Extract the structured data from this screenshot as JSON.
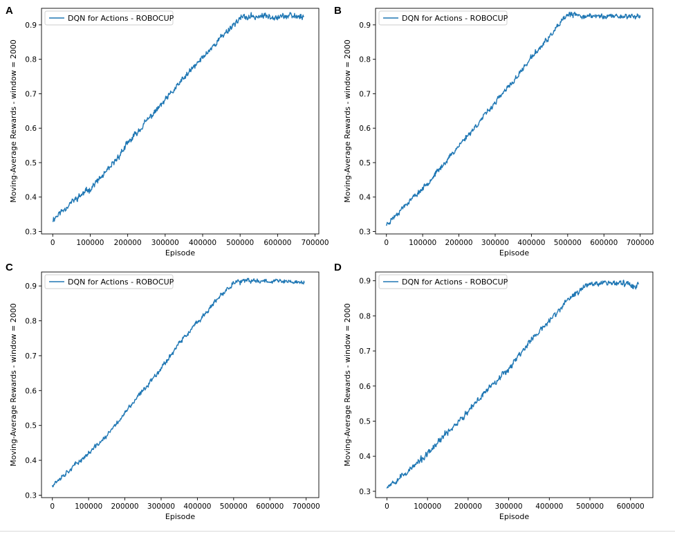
{
  "line_color": "#1f77b4",
  "chart_data": [
    {
      "panel": "A",
      "type": "line",
      "title": "",
      "xlabel": "Episode",
      "ylabel": "Moving-Average Rewards - window = 2000",
      "legend": "DQN for Actions - ROBOCUP",
      "legend_loc": "upper-left",
      "grid": false,
      "xlim": [
        -30000,
        710000
      ],
      "ylim": [
        0.293,
        0.948
      ],
      "xticks": [
        0,
        100000,
        200000,
        300000,
        400000,
        500000,
        600000,
        700000
      ],
      "xtick_labels": [
        "0",
        "100000",
        "200000",
        "300000",
        "400000",
        "500000",
        "600000",
        "700000"
      ],
      "yticks": [
        0.3,
        0.4,
        0.5,
        0.6,
        0.7,
        0.8,
        0.9
      ],
      "ytick_labels": [
        "0.3",
        "0.4",
        "0.5",
        "0.6",
        "0.7",
        "0.8",
        "0.9"
      ],
      "x": [
        0,
        50000,
        100000,
        150000,
        200000,
        250000,
        300000,
        350000,
        400000,
        450000,
        500000,
        550000,
        600000,
        670000
      ],
      "y": [
        0.335,
        0.385,
        0.425,
        0.48,
        0.555,
        0.62,
        0.68,
        0.745,
        0.805,
        0.865,
        0.92,
        0.925,
        0.925,
        0.925
      ],
      "noise": 0.012,
      "seed": 11
    },
    {
      "panel": "B",
      "type": "line",
      "title": "",
      "xlabel": "Episode",
      "ylabel": "Moving-Average Rewards - window = 2000",
      "legend": "DQN for Actions - ROBOCUP",
      "legend_loc": "upper-left",
      "grid": false,
      "xlim": [
        -30000,
        735000
      ],
      "ylim": [
        0.293,
        0.948
      ],
      "xticks": [
        0,
        100000,
        200000,
        300000,
        400000,
        500000,
        600000,
        700000
      ],
      "xtick_labels": [
        "0",
        "100000",
        "200000",
        "300000",
        "400000",
        "500000",
        "600000",
        "700000"
      ],
      "yticks": [
        0.3,
        0.4,
        0.5,
        0.6,
        0.7,
        0.8,
        0.9
      ],
      "ytick_labels": [
        "0.3",
        "0.4",
        "0.5",
        "0.6",
        "0.7",
        "0.8",
        "0.9"
      ],
      "x": [
        0,
        50000,
        100000,
        150000,
        200000,
        250000,
        300000,
        350000,
        400000,
        450000,
        500000,
        550000,
        600000,
        700000
      ],
      "y": [
        0.32,
        0.375,
        0.425,
        0.485,
        0.55,
        0.61,
        0.675,
        0.735,
        0.805,
        0.865,
        0.93,
        0.925,
        0.925,
        0.925
      ],
      "noise": 0.01,
      "seed": 23
    },
    {
      "panel": "C",
      "type": "line",
      "title": "",
      "xlabel": "Episode",
      "ylabel": "Moving-Average Rewards - window = 2000",
      "legend": "DQN for Actions - ROBOCUP",
      "legend_loc": "upper-left",
      "grid": false,
      "xlim": [
        -30000,
        735000
      ],
      "ylim": [
        0.293,
        0.94
      ],
      "xticks": [
        0,
        100000,
        200000,
        300000,
        400000,
        500000,
        600000,
        700000
      ],
      "xtick_labels": [
        "0",
        "100000",
        "200000",
        "300000",
        "400000",
        "500000",
        "600000",
        "700000"
      ],
      "yticks": [
        0.3,
        0.4,
        0.5,
        0.6,
        0.7,
        0.8,
        0.9
      ],
      "ytick_labels": [
        "0.3",
        "0.4",
        "0.5",
        "0.6",
        "0.7",
        "0.8",
        "0.9"
      ],
      "x": [
        0,
        50000,
        100000,
        150000,
        200000,
        250000,
        300000,
        350000,
        400000,
        450000,
        500000,
        550000,
        600000,
        695000
      ],
      "y": [
        0.33,
        0.375,
        0.42,
        0.47,
        0.535,
        0.6,
        0.665,
        0.735,
        0.795,
        0.855,
        0.91,
        0.915,
        0.915,
        0.91
      ],
      "noise": 0.009,
      "seed": 37
    },
    {
      "panel": "D",
      "type": "line",
      "title": "",
      "xlabel": "Episode",
      "ylabel": "Moving-Average Rewards - window = 2000",
      "legend": "DQN for Actions - ROBOCUP",
      "legend_loc": "upper-left",
      "grid": false,
      "xlim": [
        -28000,
        655000
      ],
      "ylim": [
        0.282,
        0.925
      ],
      "xticks": [
        0,
        100000,
        200000,
        300000,
        400000,
        500000,
        600000
      ],
      "xtick_labels": [
        "0",
        "100000",
        "200000",
        "300000",
        "400000",
        "500000",
        "600000"
      ],
      "yticks": [
        0.3,
        0.4,
        0.5,
        0.6,
        0.7,
        0.8,
        0.9
      ],
      "ytick_labels": [
        "0.3",
        "0.4",
        "0.5",
        "0.6",
        "0.7",
        "0.8",
        "0.9"
      ],
      "x": [
        0,
        50000,
        100000,
        150000,
        200000,
        250000,
        300000,
        350000,
        400000,
        450000,
        500000,
        550000,
        600000,
        620000
      ],
      "y": [
        0.315,
        0.355,
        0.405,
        0.47,
        0.525,
        0.595,
        0.65,
        0.725,
        0.785,
        0.85,
        0.895,
        0.895,
        0.89,
        0.885
      ],
      "noise": 0.012,
      "seed": 53
    }
  ]
}
